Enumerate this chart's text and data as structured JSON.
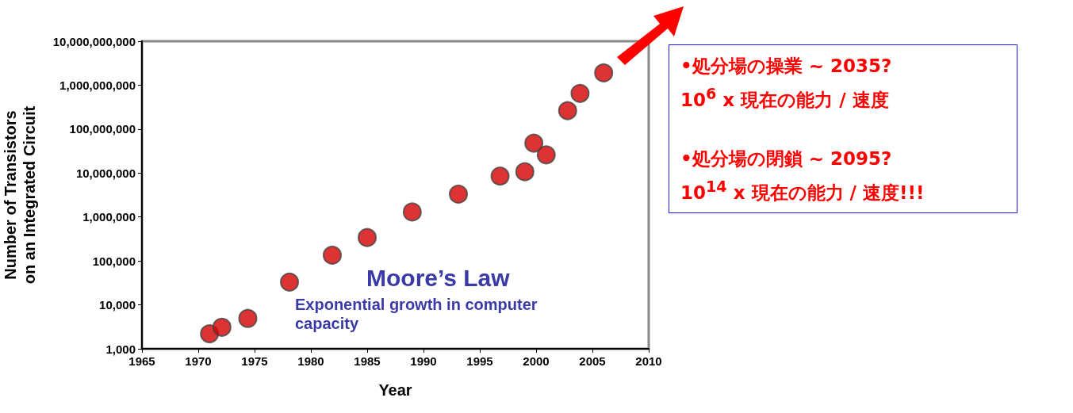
{
  "chart_data": {
    "type": "scatter",
    "xlabel": "Year",
    "ylabel": "Number of Transistors\non an Integrated Circuit",
    "x": [
      1971.0,
      1972.1,
      1974.4,
      1978.1,
      1981.9,
      1985.0,
      1989.0,
      1993.1,
      1996.8,
      1999.0,
      1999.8,
      2000.9,
      2002.8,
      2003.9,
      2006.0
    ],
    "values": [
      2200,
      3100,
      4900,
      33000,
      135000,
      340000,
      1300000,
      3300000,
      8500000,
      10700000,
      48000000,
      26000000,
      263000000,
      650000000,
      1900000000
    ],
    "color": "#d40000",
    "marker": "circle",
    "log": true,
    "xlim": [
      1965,
      2010
    ],
    "xticks": [
      1965,
      1970,
      1975,
      1980,
      1985,
      1990,
      1995,
      2000,
      2005,
      2010
    ],
    "ylim": [
      1000,
      10000000000
    ],
    "yticks": [
      {
        "value": 1000,
        "label": "1,000"
      },
      {
        "value": 10000,
        "label": "10,000"
      },
      {
        "value": 100000,
        "label": "100,000"
      },
      {
        "value": 1000000,
        "label": "1,000,000"
      },
      {
        "value": 10000000,
        "label": "10,000,000"
      },
      {
        "value": 100000000,
        "label": "100,000,000"
      },
      {
        "value": 1000000000,
        "label": "1,000,000,000"
      },
      {
        "value": 10000000000,
        "label": "10,000,000,000"
      }
    ],
    "grid": false,
    "annotations": [
      "Moore’s Law",
      "Exponential growth in computer\ncapacity",
      "•処分場の操業 ~ 2035?",
      "10$^{6}$ x 現在の能力 / 速度",
      "•処分場の閉鎖 ~ 2095?",
      "10$^{14}$ x 現在の能力 / 速度!!!"
    ]
  }
}
